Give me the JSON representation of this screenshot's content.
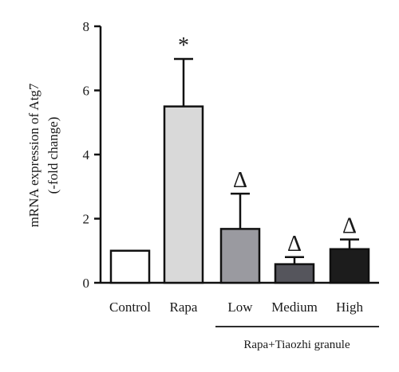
{
  "chart_data": {
    "type": "bar",
    "ylabel_line1": "mRNA expression of Atg7",
    "ylabel_line2": "(-fold change)",
    "ylim": [
      0,
      8
    ],
    "yticks": [
      "0",
      "2",
      "4",
      "6",
      "8"
    ],
    "categories": [
      "Control",
      "Rapa",
      "Low",
      "Medium",
      "High"
    ],
    "values": [
      1.0,
      5.5,
      1.68,
      0.58,
      1.05
    ],
    "errors": [
      0.0,
      1.48,
      1.1,
      0.22,
      0.3
    ],
    "annotations": [
      "",
      "*",
      "Δ",
      "Δ",
      "Δ"
    ],
    "group_label": "Rapa+Tiaozhi granule",
    "grid": false,
    "colors": {
      "bars": [
        "#ffffff",
        "#d9d9d9",
        "#9a9aa0",
        "#55555c",
        "#1c1c1c"
      ],
      "stroke": "#111111"
    }
  }
}
